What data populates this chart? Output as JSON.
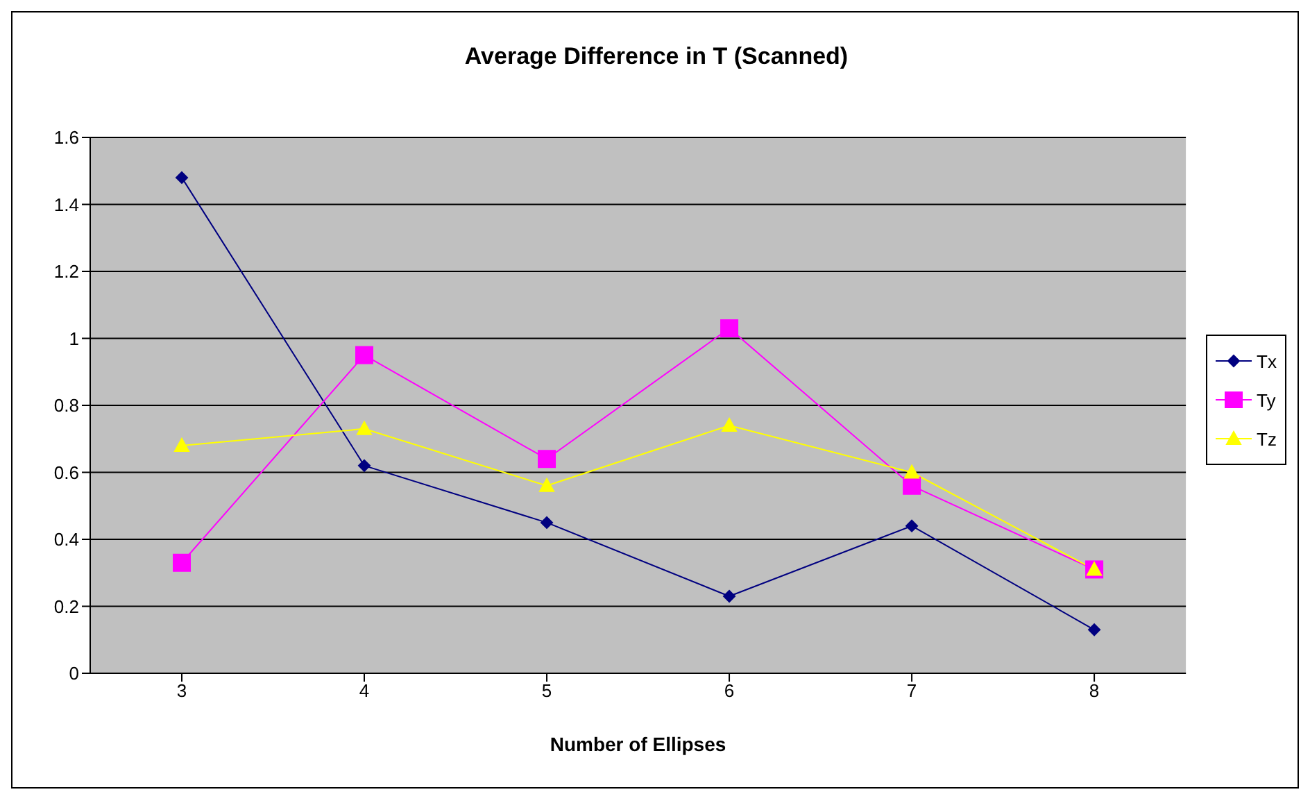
{
  "chart_data": {
    "type": "line",
    "title": "Average Difference in T (Scanned)",
    "xlabel": "Number of Ellipses",
    "categories": [
      "3",
      "4",
      "5",
      "6",
      "7",
      "8"
    ],
    "series": [
      {
        "name": "Tx",
        "color": "#000080",
        "marker": "diamond",
        "values": [
          1.48,
          0.62,
          0.45,
          0.23,
          0.44,
          0.13
        ]
      },
      {
        "name": "Ty",
        "color": "#ff00ff",
        "marker": "square",
        "values": [
          0.33,
          0.95,
          0.64,
          1.03,
          0.56,
          0.31
        ]
      },
      {
        "name": "Tz",
        "color": "#ffff00",
        "marker": "triangle",
        "values": [
          0.68,
          0.73,
          0.56,
          0.74,
          0.6,
          0.31
        ]
      }
    ],
    "ylim": [
      0,
      1.6
    ],
    "yticks": [
      0,
      0.2,
      0.4,
      0.6,
      0.8,
      1,
      1.2,
      1.4,
      1.6
    ],
    "grid": "y",
    "legend": "right"
  }
}
